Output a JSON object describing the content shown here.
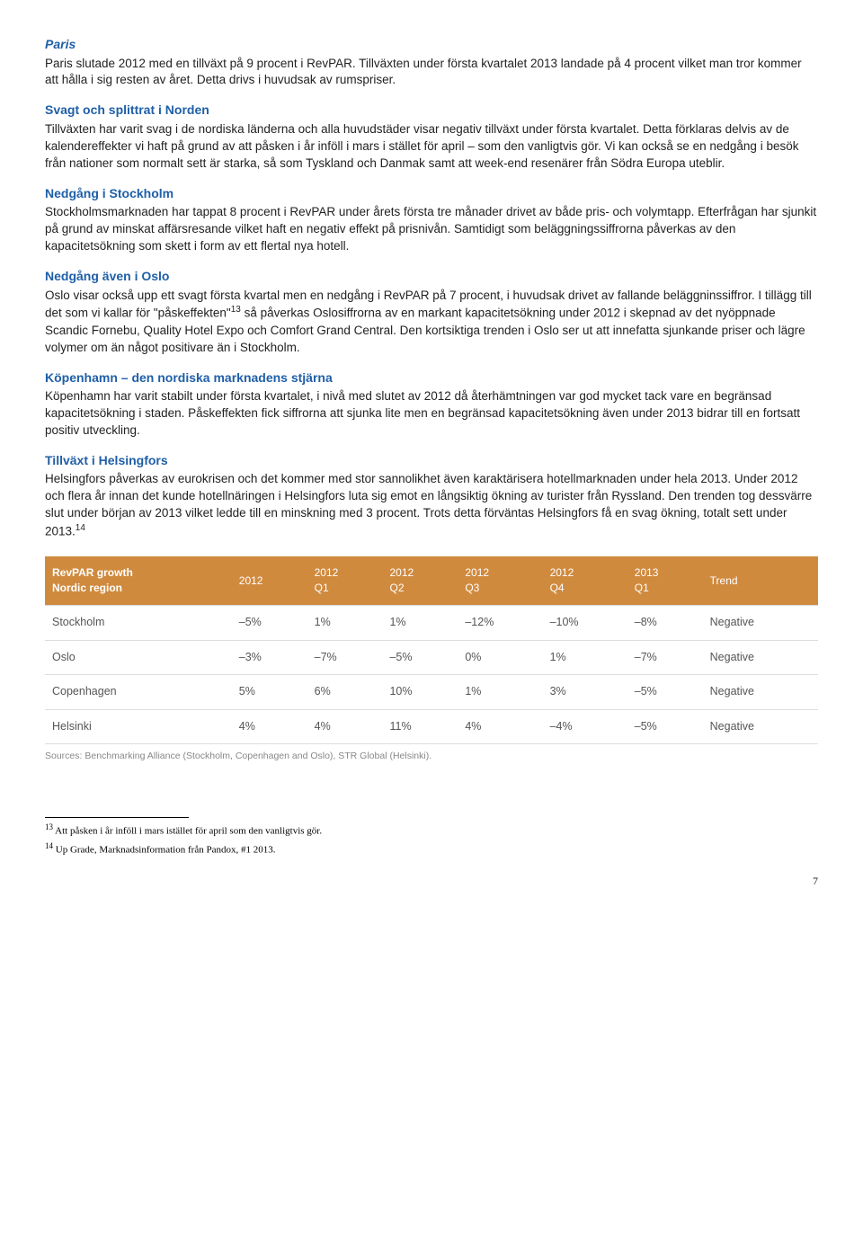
{
  "sections": [
    {
      "id": "paris",
      "heading": "Paris",
      "heading_italic": true,
      "body": "Paris slutade 2012 med en tillväxt på 9 procent i RevPAR. Tillväxten under första kvartalet 2013 landade på 4 procent vilket man tror kommer att hålla i sig resten av året. Detta drivs i huvudsak av rumspriser."
    },
    {
      "id": "norden",
      "heading": "Svagt och splittrat i Norden",
      "heading_italic": false,
      "body": "Tillväxten har varit svag i de nordiska länderna och alla huvudstäder visar negativ tillväxt under första kvartalet. Detta förklaras delvis av de kalendereffekter vi haft på grund av att påsken i år inföll i mars i stället för april – som den vanligtvis gör. Vi kan också se en nedgång i besök från nationer som normalt sett är starka, så som Tyskland och Danmak samt att week-end resenärer från Södra Europa uteblir."
    },
    {
      "id": "stockholm",
      "heading": "Nedgång i Stockholm",
      "heading_italic": false,
      "body": "Stockholmsmarknaden har tappat 8 procent i RevPAR under årets första tre månader drivet av både pris- och volymtapp. Efterfrågan har sjunkit på grund av minskat affärsresande vilket haft en negativ effekt på prisnivån. Samtidigt som beläggningssiffrorna påverkas av den kapacitetsökning som skett i form av ett flertal nya hotell."
    },
    {
      "id": "oslo",
      "heading": "Nedgång även i Oslo",
      "heading_italic": false,
      "body_html": "Oslo visar också upp ett svagt första kvartal men en nedgång i RevPAR på 7 procent, i huvudsak drivet av fallande beläggninssiffror. I tillägg till det som vi kallar för \"påskeffekten\"<sup>13</sup> så påverkas Oslosiffrorna av en markant kapacitetsökning under 2012 i skepnad av det nyöppnade Scandic Fornebu, Quality Hotel Expo och Comfort Grand Central. Den kortsiktiga trenden i Oslo ser ut att innefatta sjunkande priser och lägre volymer om än något positivare än i Stockholm."
    },
    {
      "id": "kopenhamn",
      "heading": "Köpenhamn – den nordiska marknadens stjärna",
      "heading_italic": false,
      "body": "Köpenhamn har varit stabilt under första kvartalet, i nivå med slutet av 2012 då återhämtningen var god mycket tack vare en begränsad kapacitetsökning i staden. Påskeffekten fick siffrorna att sjunka lite men en begränsad kapacitetsökning även under 2013 bidrar till en fortsatt positiv utveckling."
    },
    {
      "id": "helsingfors",
      "heading": "Tillväxt i Helsingfors",
      "heading_italic": false,
      "body_html": "Helsingfors påverkas av eurokrisen och det kommer med stor sannolikhet även karaktärisera hotellmarknaden under hela 2013. Under 2012 och flera år innan det kunde hotellnäringen i Helsingfors luta sig emot en långsiktig ökning av turister från Ryssland. Den trenden tog dessvärre slut under början av 2013 vilket ledde till en minskning med 3 procent. Trots detta förväntas Helsingfors få en svag ökning, totalt sett under 2013.<sup>14</sup>"
    }
  ],
  "table": {
    "header_bg": "#d08a3e",
    "header_color": "#ffffff",
    "columns": [
      "RevPAR growth\nNordic region",
      "2012",
      "2012\nQ1",
      "2012\nQ2",
      "2012\nQ3",
      "2012\nQ4",
      "2013\nQ1",
      "Trend"
    ],
    "rows": [
      [
        "Stockholm",
        "–5%",
        "1%",
        "1%",
        "–12%",
        "–10%",
        "–8%",
        "Negative"
      ],
      [
        "Oslo",
        "–3%",
        "–7%",
        "–5%",
        "0%",
        "1%",
        "–7%",
        "Negative"
      ],
      [
        "Copenhagen",
        "5%",
        "6%",
        "10%",
        "1%",
        "3%",
        "–5%",
        "Negative"
      ],
      [
        "Helsinki",
        "4%",
        "4%",
        "11%",
        "4%",
        "–4%",
        "–5%",
        "Negative"
      ]
    ],
    "source": "Sources: Benchmarking Alliance (Stockholm, Copenhagen and Oslo), STR Global (Helsinki)."
  },
  "footnotes": [
    {
      "num": "13",
      "text": "Att påsken i år inföll i mars istället för april som den vanligtvis gör."
    },
    {
      "num": "14",
      "text": "Up Grade, Marknadsinformation från Pandox, #1 2013."
    }
  ],
  "page_number": "7"
}
